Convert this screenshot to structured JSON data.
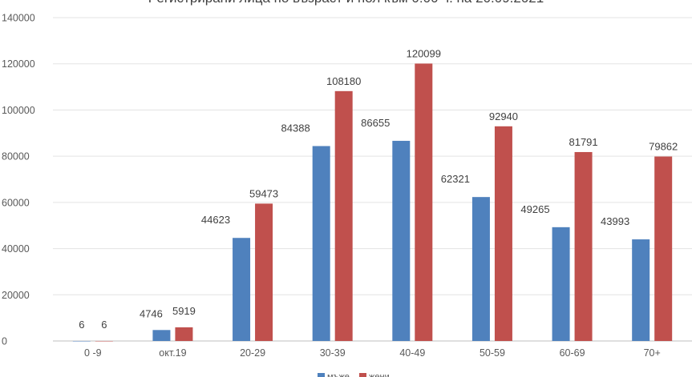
{
  "chart_data": {
    "type": "bar",
    "title": "Регистрирани лица по възраст и пол към 0:00 ч. на 20.09.2021",
    "categories": [
      "0 -9",
      "окт.19",
      "20-29",
      "30-39",
      "40-49",
      "50-59",
      "60-69",
      "70+"
    ],
    "series": [
      {
        "name": "мъже",
        "color": "#4f81bd",
        "values": [
          6,
          4746,
          44623,
          84388,
          86655,
          62321,
          49265,
          43993
        ]
      },
      {
        "name": "жени",
        "color": "#c0504d",
        "values": [
          6,
          5919,
          59473,
          108180,
          120099,
          92940,
          81791,
          79862
        ]
      }
    ],
    "ylim": [
      0,
      140000
    ],
    "yticks": [
      0,
      20000,
      40000,
      60000,
      80000,
      100000,
      120000,
      140000
    ],
    "grid": true,
    "legend": "bottom",
    "xlabel": "",
    "ylabel": ""
  }
}
